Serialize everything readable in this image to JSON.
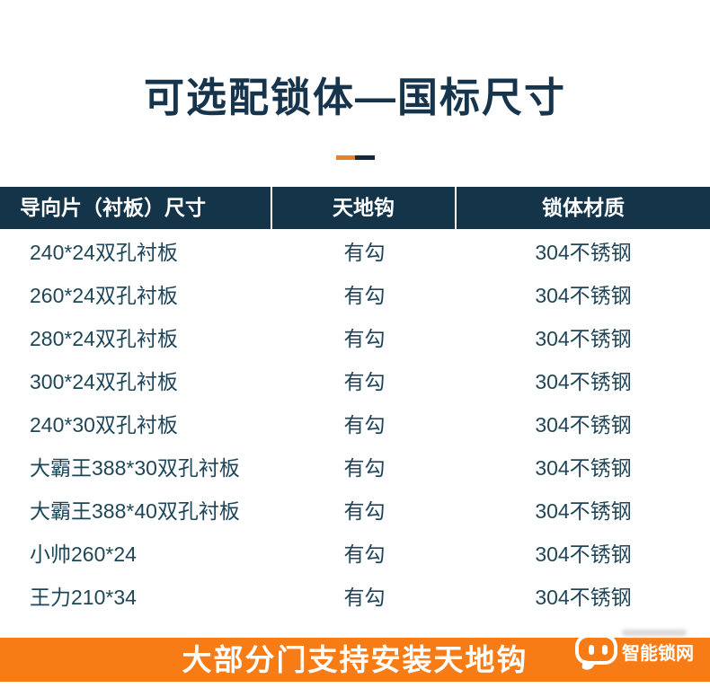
{
  "page": {
    "title": "可选配锁体—国标尺寸",
    "footer_banner": "大部分门支持安装天地钩"
  },
  "table": {
    "headers": [
      "导向片（衬板）尺寸",
      "天地钩",
      "锁体材质"
    ],
    "rows": [
      [
        "240*24双孔衬板",
        "有勾",
        "304不锈钢"
      ],
      [
        "260*24双孔衬板",
        "有勾",
        "304不锈钢"
      ],
      [
        "280*24双孔衬板",
        "有勾",
        "304不锈钢"
      ],
      [
        "300*24双孔衬板",
        "有勾",
        "304不锈钢"
      ],
      [
        "240*30双孔衬板",
        "有勾",
        "304不锈钢"
      ],
      [
        "大霸王388*30双孔衬板",
        "有勾",
        "304不锈钢"
      ],
      [
        "大霸王388*40双孔衬板",
        "有勾",
        "304不锈钢"
      ],
      [
        "小帅260*24",
        "有勾",
        "304不锈钢"
      ],
      [
        "王力210*34",
        "有勾",
        "304不锈钢"
      ]
    ]
  },
  "watermark": {
    "site_name": "智能锁网"
  },
  "colors": {
    "header_navy": "#14344A",
    "title_navy": "#16354C",
    "row_text": "#1E4658",
    "footer_orange": "#F87C15",
    "dash_orange": "#E6802C",
    "dash_navy": "#13293F"
  }
}
